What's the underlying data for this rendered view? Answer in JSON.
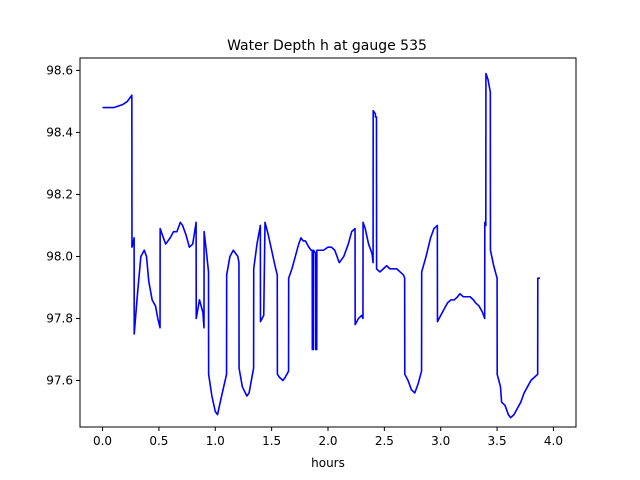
{
  "chart_data": {
    "type": "line",
    "title": "Water Depth h at gauge 535",
    "xlabel": "hours",
    "ylabel": "",
    "xlim": [
      -0.2,
      4.2
    ],
    "ylim": [
      97.45,
      98.64
    ],
    "x_ticks": [
      0.0,
      0.5,
      1.0,
      1.5,
      2.0,
      2.5,
      3.0,
      3.5,
      4.0
    ],
    "x_tick_labels": [
      "0.0",
      "0.5",
      "1.0",
      "1.5",
      "2.0",
      "2.5",
      "3.0",
      "3.5",
      "4.0"
    ],
    "y_ticks": [
      97.6,
      97.8,
      98.0,
      98.2,
      98.4,
      98.6
    ],
    "y_tick_labels": [
      "97.6",
      "97.8",
      "98.0",
      "98.2",
      "98.4",
      "98.6"
    ],
    "grid": false,
    "legend": "none",
    "series": [
      {
        "color": "#0000ff",
        "points": [
          [
            0.0,
            98.48
          ],
          [
            0.1,
            98.48
          ],
          [
            0.18,
            98.49
          ],
          [
            0.22,
            98.5
          ],
          [
            0.26,
            98.52
          ],
          [
            0.261,
            98.03
          ],
          [
            0.27,
            98.04
          ],
          [
            0.28,
            98.06
          ],
          [
            0.281,
            97.75
          ],
          [
            0.31,
            97.88
          ],
          [
            0.34,
            98.0
          ],
          [
            0.37,
            98.02
          ],
          [
            0.39,
            98.0
          ],
          [
            0.41,
            97.92
          ],
          [
            0.44,
            97.86
          ],
          [
            0.47,
            97.84
          ],
          [
            0.49,
            97.8
          ],
          [
            0.51,
            97.77
          ],
          [
            0.511,
            98.09
          ],
          [
            0.53,
            98.07
          ],
          [
            0.56,
            98.04
          ],
          [
            0.6,
            98.06
          ],
          [
            0.63,
            98.08
          ],
          [
            0.66,
            98.08
          ],
          [
            0.69,
            98.11
          ],
          [
            0.71,
            98.1
          ],
          [
            0.74,
            98.07
          ],
          [
            0.77,
            98.03
          ],
          [
            0.8,
            98.04
          ],
          [
            0.83,
            98.11
          ],
          [
            0.831,
            97.8
          ],
          [
            0.86,
            97.86
          ],
          [
            0.89,
            97.82
          ],
          [
            0.9,
            97.77
          ],
          [
            0.901,
            98.08
          ],
          [
            0.92,
            98.02
          ],
          [
            0.94,
            97.95
          ],
          [
            0.941,
            97.62
          ],
          [
            0.97,
            97.55
          ],
          [
            1.0,
            97.5
          ],
          [
            1.02,
            97.49
          ],
          [
            1.05,
            97.54
          ],
          [
            1.1,
            97.62
          ],
          [
            1.101,
            97.94
          ],
          [
            1.13,
            98.0
          ],
          [
            1.16,
            98.02
          ],
          [
            1.2,
            98.0
          ],
          [
            1.21,
            97.98
          ],
          [
            1.211,
            97.64
          ],
          [
            1.24,
            97.58
          ],
          [
            1.28,
            97.55
          ],
          [
            1.3,
            97.56
          ],
          [
            1.34,
            97.64
          ],
          [
            1.341,
            97.96
          ],
          [
            1.37,
            98.04
          ],
          [
            1.4,
            98.1
          ],
          [
            1.401,
            97.79
          ],
          [
            1.43,
            97.81
          ],
          [
            1.441,
            98.11
          ],
          [
            1.47,
            98.07
          ],
          [
            1.5,
            98.02
          ],
          [
            1.53,
            97.97
          ],
          [
            1.55,
            97.94
          ],
          [
            1.551,
            97.62
          ],
          [
            1.57,
            97.61
          ],
          [
            1.6,
            97.6
          ],
          [
            1.62,
            97.61
          ],
          [
            1.65,
            97.63
          ],
          [
            1.651,
            97.93
          ],
          [
            1.68,
            97.96
          ],
          [
            1.71,
            98.0
          ],
          [
            1.74,
            98.04
          ],
          [
            1.76,
            98.06
          ],
          [
            1.78,
            98.05
          ],
          [
            1.8,
            98.05
          ],
          [
            1.83,
            98.03
          ],
          [
            1.85,
            98.02
          ],
          [
            1.86,
            98.02
          ],
          [
            1.861,
            97.7
          ],
          [
            1.87,
            97.7
          ],
          [
            1.871,
            98.02
          ],
          [
            1.89,
            98.01
          ],
          [
            1.891,
            97.7
          ],
          [
            1.9,
            97.7
          ],
          [
            1.901,
            98.02
          ],
          [
            1.93,
            98.02
          ],
          [
            1.96,
            98.02
          ],
          [
            2.0,
            98.03
          ],
          [
            2.03,
            98.03
          ],
          [
            2.06,
            98.02
          ],
          [
            2.1,
            97.98
          ],
          [
            2.14,
            98.0
          ],
          [
            2.18,
            98.04
          ],
          [
            2.21,
            98.08
          ],
          [
            2.24,
            98.09
          ],
          [
            2.241,
            97.78
          ],
          [
            2.27,
            97.8
          ],
          [
            2.3,
            97.81
          ],
          [
            2.31,
            97.8
          ],
          [
            2.311,
            98.11
          ],
          [
            2.33,
            98.09
          ],
          [
            2.36,
            98.04
          ],
          [
            2.39,
            98.01
          ],
          [
            2.4,
            97.98
          ],
          [
            2.401,
            98.47
          ],
          [
            2.42,
            98.46
          ],
          [
            2.421,
            98.45
          ],
          [
            2.43,
            98.45
          ],
          [
            2.431,
            97.96
          ],
          [
            2.46,
            97.95
          ],
          [
            2.49,
            97.96
          ],
          [
            2.52,
            97.97
          ],
          [
            2.55,
            97.96
          ],
          [
            2.58,
            97.96
          ],
          [
            2.61,
            97.96
          ],
          [
            2.64,
            97.95
          ],
          [
            2.67,
            97.94
          ],
          [
            2.68,
            97.93
          ],
          [
            2.681,
            97.62
          ],
          [
            2.71,
            97.6
          ],
          [
            2.74,
            97.57
          ],
          [
            2.77,
            97.56
          ],
          [
            2.8,
            97.59
          ],
          [
            2.83,
            97.63
          ],
          [
            2.831,
            97.95
          ],
          [
            2.87,
            98.0
          ],
          [
            2.91,
            98.06
          ],
          [
            2.94,
            98.09
          ],
          [
            2.97,
            98.1
          ],
          [
            2.971,
            97.79
          ],
          [
            3.0,
            97.81
          ],
          [
            3.03,
            97.83
          ],
          [
            3.06,
            97.85
          ],
          [
            3.09,
            97.86
          ],
          [
            3.12,
            97.86
          ],
          [
            3.15,
            97.87
          ],
          [
            3.17,
            97.88
          ],
          [
            3.2,
            97.87
          ],
          [
            3.23,
            97.87
          ],
          [
            3.26,
            97.87
          ],
          [
            3.29,
            97.86
          ],
          [
            3.31,
            97.85
          ],
          [
            3.34,
            97.84
          ],
          [
            3.37,
            97.82
          ],
          [
            3.39,
            97.8
          ],
          [
            3.391,
            98.11
          ],
          [
            3.4,
            98.1
          ],
          [
            3.401,
            98.59
          ],
          [
            3.42,
            98.57
          ],
          [
            3.44,
            98.53
          ],
          [
            3.441,
            98.02
          ],
          [
            3.47,
            97.97
          ],
          [
            3.5,
            97.93
          ],
          [
            3.501,
            97.62
          ],
          [
            3.53,
            97.58
          ],
          [
            3.54,
            97.53
          ],
          [
            3.57,
            97.52
          ],
          [
            3.6,
            97.49
          ],
          [
            3.62,
            97.48
          ],
          [
            3.65,
            97.49
          ],
          [
            3.68,
            97.51
          ],
          [
            3.71,
            97.53
          ],
          [
            3.74,
            97.56
          ],
          [
            3.77,
            97.58
          ],
          [
            3.8,
            97.6
          ],
          [
            3.83,
            97.61
          ],
          [
            3.86,
            97.62
          ],
          [
            3.861,
            97.93
          ],
          [
            3.88,
            97.93
          ]
        ]
      }
    ]
  }
}
